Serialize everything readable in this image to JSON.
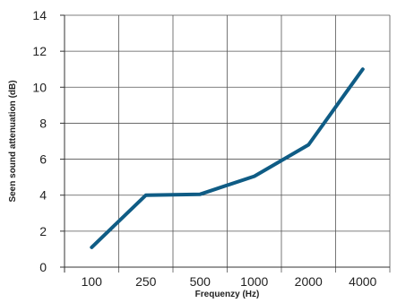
{
  "chart_data": {
    "type": "line",
    "title": "",
    "xlabel": "Frequenzy (Hz)",
    "ylabel": "Seen sound attenuation (dB)",
    "categories": [
      "100",
      "250",
      "500",
      "1000",
      "2000",
      "4000"
    ],
    "series": [
      {
        "values": [
          1.1,
          4.0,
          4.05,
          5.05,
          6.8,
          11.0
        ]
      }
    ],
    "ylim": [
      0,
      14
    ],
    "yticks": [
      "0",
      "2",
      "4",
      "6",
      "8",
      "10",
      "12",
      "14"
    ],
    "grid": true,
    "legend": "none",
    "colors": {
      "line": "#0f5c85",
      "grid": "#555555",
      "axis": "#333333"
    }
  }
}
